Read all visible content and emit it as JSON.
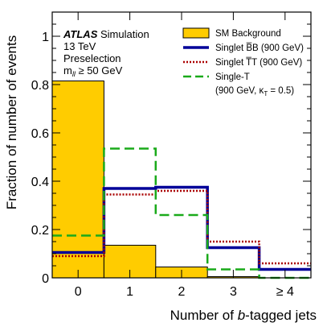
{
  "chart_data": {
    "type": "bar",
    "categories": [
      "0",
      "1",
      "2",
      "3",
      "≥ 4"
    ],
    "xlabel_parts": [
      "Number of ",
      "b",
      "-tagged jets"
    ],
    "ylabel": "Fraction of number of events",
    "ylim": [
      0,
      1.1
    ],
    "yticks": [
      0,
      0.2,
      0.4,
      0.6,
      0.8,
      1
    ],
    "ytick_labels": [
      "0",
      "0.2",
      "0.4",
      "0.6",
      "0.8",
      "1"
    ],
    "grid": false,
    "legend_position": "top-right",
    "annotation": {
      "atlas": "ATLAS",
      "simulation": " Simulation",
      "energy": "13 TeV",
      "selection": "Preselection",
      "cut_m": "m",
      "cut_sub": "ll",
      "cut_rest": " ≥ 50 GeV"
    },
    "series": [
      {
        "name": "SM Background",
        "style": "filled",
        "color": "#ffcc00",
        "values": [
          0.815,
          0.135,
          0.045,
          0.005,
          0.0
        ]
      },
      {
        "name": "Singlet B̅B (900 GeV)",
        "style": "solid",
        "color": "#000099",
        "values": [
          0.105,
          0.37,
          0.375,
          0.125,
          0.035
        ]
      },
      {
        "name": "Singlet T̅T (900 GeV)",
        "style": "dotted",
        "color": "#aa0000",
        "values": [
          0.09,
          0.345,
          0.36,
          0.15,
          0.06
        ]
      },
      {
        "name": "Single-T",
        "name_line2": "(900 GeV, κ",
        "name_line2_sub": "T",
        "name_line2_rest": " = 0.5)",
        "style": "dashed",
        "color": "#1aaa1a",
        "values": [
          0.175,
          0.535,
          0.26,
          0.035,
          0.0
        ]
      }
    ]
  }
}
